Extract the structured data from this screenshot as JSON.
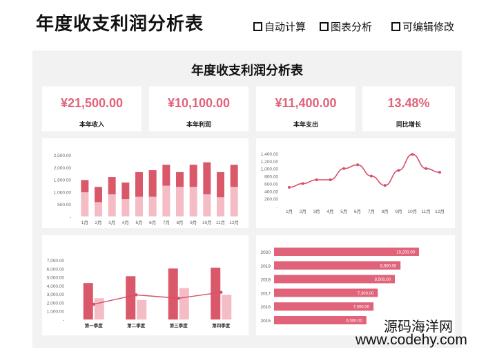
{
  "header": {
    "title": "年度收支利润分析表",
    "features": [
      "自动计算",
      "图表分析",
      "可编辑修改"
    ]
  },
  "dashboard": {
    "title": "年度收支利润分析表",
    "kpis": [
      {
        "value": "¥21,500.00",
        "label": "本年收入"
      },
      {
        "value": "¥10,100.00",
        "label": "本年利润"
      },
      {
        "value": "¥11,400.00",
        "label": "本年支出"
      },
      {
        "value": "13.48%",
        "label": "同比增长"
      }
    ]
  },
  "colors": {
    "accent": "#e0637a",
    "dark_bar": "#d9596b",
    "light_bar": "#f4bcc4",
    "line": "#d64f68"
  },
  "watermark": {
    "line1": "源码海洋网",
    "line2": "www.codehy.com"
  },
  "chart_data": [
    {
      "type": "bar",
      "categories": [
        "1月",
        "2月",
        "3月",
        "4月",
        "5月",
        "6月",
        "7月",
        "8月",
        "9月",
        "10月",
        "11月",
        "12月"
      ],
      "series": [
        {
          "values": [
            980,
            580,
            900,
            700,
            800,
            800,
            1250,
            1200,
            1200,
            900,
            780,
            1200
          ]
        },
        {
          "values": [
            500,
            620,
            700,
            680,
            1000,
            1080,
            850,
            600,
            900,
            1300,
            1020,
            900
          ]
        }
      ],
      "stacked": true,
      "ylim": [
        0,
        2500
      ],
      "yticks": [
        "2,500.00",
        "2,000.00",
        "1,500.00",
        "1,000.00",
        "500.00",
        "-"
      ]
    },
    {
      "type": "line",
      "categories": [
        "1月",
        "2月",
        "3月",
        "4月",
        "5月",
        "6月",
        "7月",
        "8月",
        "9月",
        "10月",
        "11月",
        "12月"
      ],
      "series": [
        {
          "values": [
            500,
            600,
            700,
            700,
            1000,
            1100,
            800,
            550,
            950,
            1380,
            1000,
            900
          ]
        }
      ],
      "ylim": [
        0,
        1400
      ],
      "yticks": [
        "1,400.00",
        "1,200.00",
        "1,000.00",
        "800.00",
        "600.00",
        "400.00",
        "200.00",
        "-"
      ]
    },
    {
      "type": "bar",
      "categories": [
        "第一季度",
        "第二季度",
        "第三季度",
        "第四季度"
      ],
      "series": [
        {
          "values": [
            4300,
            5100,
            6000,
            6100
          ]
        },
        {
          "values": [
            2500,
            2300,
            3700,
            2900
          ]
        },
        {
          "values": [
            1800,
            2900,
            2500,
            3200
          ],
          "type": "line"
        }
      ],
      "ylim": [
        0,
        7000
      ],
      "yticks": [
        "7,000.00",
        "6,000.00",
        "5,000.00",
        "4,000.00",
        "3,000.00",
        "2,000.00",
        "1,000.00",
        "-"
      ]
    },
    {
      "type": "bar",
      "orientation": "horizontal",
      "categories": [
        "2020",
        "2019",
        "2018",
        "2017",
        "2016",
        "2015"
      ],
      "values": [
        10200,
        8900,
        8500,
        7300,
        7000,
        6500
      ],
      "labels": [
        "10,200.00",
        "8,900.00",
        "8,500.00",
        "7,300.00",
        "7,000.00",
        "6,500.00"
      ]
    }
  ]
}
